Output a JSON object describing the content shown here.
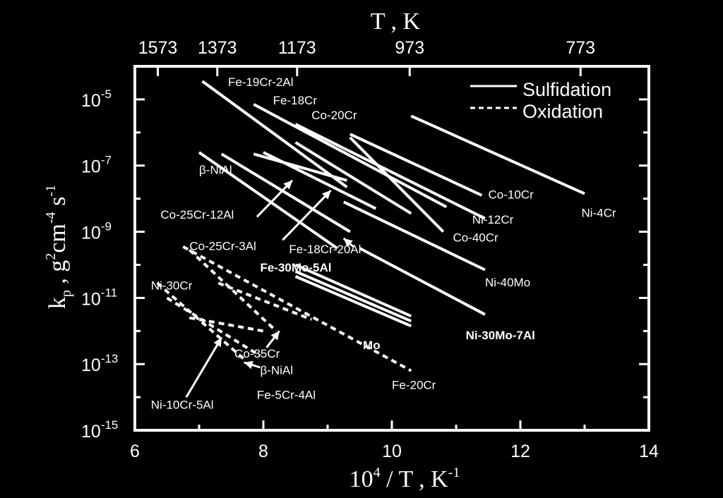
{
  "chart_data": {
    "type": "line",
    "title": "",
    "xlabel": {
      "base": "10",
      "sup": "4",
      "rest": " / T , K",
      "unit_sup": "-1"
    },
    "x2label": "T , K",
    "ylabel": {
      "main": "k",
      "sub": "p",
      "rest1": " , g",
      "sup1": "2",
      "rest2": "cm",
      "sup2": "-4",
      "rest3": " s",
      "sup3": "-1"
    },
    "xlim": [
      6,
      14
    ],
    "ylim_log10": [
      -15,
      -4
    ],
    "x_ticks": [
      6,
      8,
      10,
      12,
      14
    ],
    "x_tick_labels": [
      "6",
      "8",
      "10",
      "12",
      "14"
    ],
    "top_ticks_T": [
      1573,
      1373,
      1173,
      973,
      773
    ],
    "top_tick_labels": [
      "1573",
      "1373",
      "1173",
      "973",
      "773"
    ],
    "y_tick_exponents": [
      -5,
      -7,
      -9,
      -11,
      -13,
      -15
    ],
    "y_tick_labels": [
      "10",
      "10",
      "10",
      "10",
      "10",
      "10"
    ],
    "y_tick_sups": [
      "-5",
      "-7",
      "-9",
      "-11",
      "-13",
      "-15"
    ],
    "legend": [
      {
        "label": "Sulfidation",
        "style": "solid"
      },
      {
        "label": "Oxidation",
        "style": "dashed"
      }
    ],
    "color": "#ffffff",
    "series": [
      {
        "style": "solid",
        "points": [
          [
            7.05,
            -4.45
          ],
          [
            9.3,
            -7.65
          ]
        ]
      },
      {
        "style": "solid",
        "points": [
          [
            7.35,
            -6.65
          ],
          [
            9.35,
            -9.0
          ]
        ]
      },
      {
        "style": "solid",
        "points": [
          [
            7.0,
            -6.6
          ],
          [
            9.15,
            -9.5
          ]
        ]
      },
      {
        "style": "solid",
        "points": [
          [
            7.85,
            -6.65
          ],
          [
            9.3,
            -7.45
          ]
        ]
      },
      {
        "style": "solid",
        "points": [
          [
            7.85,
            -5.15
          ],
          [
            10.85,
            -8.25
          ]
        ]
      },
      {
        "style": "solid",
        "points": [
          [
            8.5,
            -6.3
          ],
          [
            10.3,
            -8.45
          ]
        ]
      },
      {
        "style": "solid",
        "points": [
          [
            8.0,
            -6.6
          ],
          [
            9.75,
            -8.3
          ]
        ]
      },
      {
        "style": "solid",
        "points": [
          [
            8.5,
            -5.75
          ],
          [
            11.45,
            -8.6
          ]
        ]
      },
      {
        "style": "solid",
        "points": [
          [
            9.35,
            -6.05
          ],
          [
            11.4,
            -7.9
          ]
        ]
      },
      {
        "style": "solid",
        "points": [
          [
            9.35,
            -6.15
          ],
          [
            10.8,
            -9.0
          ]
        ]
      },
      {
        "style": "solid",
        "points": [
          [
            9.25,
            -8.1
          ],
          [
            11.45,
            -10.15
          ]
        ]
      },
      {
        "style": "solid",
        "points": [
          [
            10.3,
            -5.5
          ],
          [
            13.0,
            -7.85
          ]
        ]
      },
      {
        "style": "solid",
        "points": [
          [
            9.5,
            -9.5
          ],
          [
            11.45,
            -11.5
          ]
        ]
      },
      {
        "style": "solid",
        "points": [
          [
            8.5,
            -10.0
          ],
          [
            10.3,
            -11.55
          ]
        ]
      },
      {
        "style": "solid",
        "points": [
          [
            8.5,
            -10.2
          ],
          [
            10.3,
            -11.7
          ]
        ]
      },
      {
        "style": "solid",
        "points": [
          [
            8.5,
            -10.35
          ],
          [
            10.3,
            -11.85
          ]
        ]
      },
      {
        "style": "dashed",
        "points": [
          [
            6.75,
            -9.45
          ],
          [
            10.3,
            -13.2
          ]
        ]
      },
      {
        "style": "dashed",
        "points": [
          [
            7.3,
            -10.55
          ],
          [
            8.75,
            -11.65
          ]
        ]
      },
      {
        "style": "dashed",
        "points": [
          [
            6.35,
            -10.55
          ],
          [
            7.7,
            -12.85
          ]
        ]
      },
      {
        "style": "dashed",
        "points": [
          [
            6.5,
            -11.0
          ],
          [
            7.95,
            -12.75
          ]
        ]
      },
      {
        "style": "dashed",
        "points": [
          [
            6.85,
            -11.6
          ],
          [
            8.0,
            -12.0
          ]
        ]
      },
      {
        "style": "dashed",
        "points": [
          [
            6.85,
            -9.55
          ],
          [
            8.2,
            -12.0
          ]
        ]
      }
    ],
    "labels": [
      {
        "text": "Fe-19Cr-2Al",
        "x": 7.45,
        "y": -4.6,
        "bold": false
      },
      {
        "text": "Fe-18Cr",
        "x": 8.15,
        "y": -5.15,
        "bold": false
      },
      {
        "text": "Co-20Cr",
        "x": 8.75,
        "y": -5.6,
        "bold": false
      },
      {
        "text": "β-NiAl",
        "x": 7.0,
        "y": -7.25,
        "bold": false
      },
      {
        "text": "Co-25Cr-12Al",
        "x": 6.4,
        "y": -8.6,
        "bold": false
      },
      {
        "text": "Co-25Cr-3Al",
        "x": 6.85,
        "y": -9.55,
        "bold": false
      },
      {
        "text": "Fe-18Cr-20Al",
        "x": 8.4,
        "y": -9.65,
        "bold": false
      },
      {
        "text": "Fe-30Mo-5Al",
        "x": 7.95,
        "y": -10.2,
        "bold": true
      },
      {
        "text": "Co-10Cr",
        "x": 11.5,
        "y": -8.0,
        "bold": false
      },
      {
        "text": "Ni-12Cr",
        "x": 11.25,
        "y": -8.75,
        "bold": false
      },
      {
        "text": "Ni-4Cr",
        "x": 12.95,
        "y": -8.55,
        "bold": false
      },
      {
        "text": "Co-40Cr",
        "x": 10.95,
        "y": -9.3,
        "bold": false
      },
      {
        "text": "Ni-40Mo",
        "x": 11.45,
        "y": -10.65,
        "bold": false
      },
      {
        "text": "Ni-30Mo-7Al",
        "x": 11.15,
        "y": -12.25,
        "bold": true
      },
      {
        "text": "Mo",
        "x": 9.55,
        "y": -12.55,
        "bold": true
      },
      {
        "text": "Ni-30Cr",
        "x": 6.25,
        "y": -10.75,
        "bold": false
      },
      {
        "text": "Co-35Cr",
        "x": 7.55,
        "y": -12.8,
        "bold": false
      },
      {
        "text": "β-NiAl",
        "x": 7.95,
        "y": -13.3,
        "bold": false
      },
      {
        "text": "Fe-5Cr-4Al",
        "x": 7.9,
        "y": -14.05,
        "bold": false
      },
      {
        "text": "Ni-10Cr-5Al",
        "x": 6.25,
        "y": -14.35,
        "bold": false
      },
      {
        "text": "Fe-20Cr",
        "x": 10.0,
        "y": -13.75,
        "bold": false
      }
    ],
    "arrows": [
      {
        "from": [
          7.9,
          -8.55
        ],
        "to": [
          8.45,
          -7.45
        ]
      },
      {
        "from": [
          8.3,
          -9.25
        ],
        "to": [
          9.05,
          -7.75
        ]
      },
      {
        "from": [
          9.4,
          -9.45
        ],
        "to": [
          9.25,
          -9.2
        ]
      },
      {
        "from": [
          8.05,
          -12.5
        ],
        "to": [
          8.25,
          -12.0
        ]
      },
      {
        "from": [
          7.95,
          -13.1
        ],
        "to": [
          7.7,
          -12.95
        ]
      },
      {
        "from": [
          6.8,
          -14.0
        ],
        "to": [
          7.35,
          -12.2
        ]
      }
    ]
  }
}
